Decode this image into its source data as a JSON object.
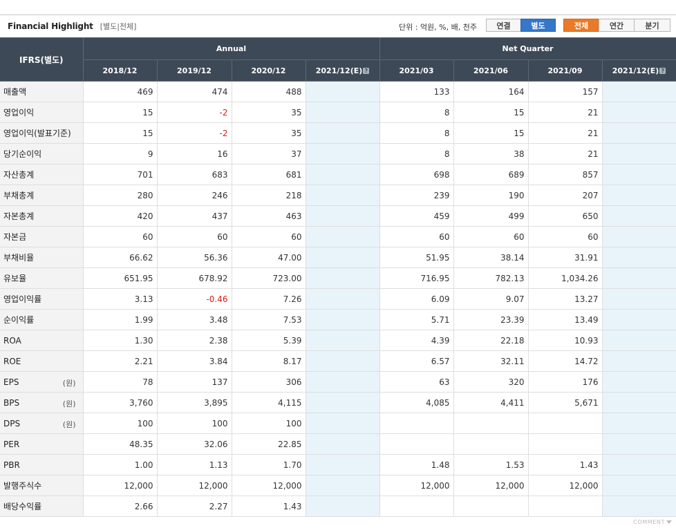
{
  "header": {
    "title": "Financial Highlight",
    "subtitle": "[별도|전체]",
    "unit": "단위 : 억원, %, 배, 천주",
    "consolidation_buttons": [
      {
        "label": "연결",
        "active": false
      },
      {
        "label": "별도",
        "active": true
      }
    ],
    "period_buttons": [
      {
        "label": "전체",
        "active": true
      },
      {
        "label": "연간",
        "active": false
      },
      {
        "label": "분기",
        "active": false
      }
    ],
    "accent_blue": "#3577c8",
    "accent_orange": "#ea7a28"
  },
  "table": {
    "corner_label": "IFRS(별도)",
    "group_annual": "Annual",
    "group_quarter": "Net Quarter",
    "annual_columns": [
      "2018/12",
      "2019/12",
      "2020/12",
      "2021/12(E)"
    ],
    "quarter_columns": [
      "2021/03",
      "2021/06",
      "2021/09",
      "2021/12(E)"
    ],
    "help_icon": "?",
    "rows": [
      {
        "label": "매출액",
        "unit": "",
        "values": [
          "469",
          "474",
          "488",
          "",
          "133",
          "164",
          "157",
          ""
        ]
      },
      {
        "label": "영업이익",
        "unit": "",
        "values": [
          "15",
          "-2",
          "35",
          "",
          "8",
          "15",
          "21",
          ""
        ]
      },
      {
        "label": "영업이익(발표기준)",
        "unit": "",
        "values": [
          "15",
          "-2",
          "35",
          "",
          "8",
          "15",
          "21",
          ""
        ]
      },
      {
        "label": "당기순이익",
        "unit": "",
        "values": [
          "9",
          "16",
          "37",
          "",
          "8",
          "38",
          "21",
          ""
        ]
      },
      {
        "label": "자산총계",
        "unit": "",
        "values": [
          "701",
          "683",
          "681",
          "",
          "698",
          "689",
          "857",
          ""
        ]
      },
      {
        "label": "부채총계",
        "unit": "",
        "values": [
          "280",
          "246",
          "218",
          "",
          "239",
          "190",
          "207",
          ""
        ]
      },
      {
        "label": "자본총계",
        "unit": "",
        "values": [
          "420",
          "437",
          "463",
          "",
          "459",
          "499",
          "650",
          ""
        ]
      },
      {
        "label": "자본금",
        "unit": "",
        "values": [
          "60",
          "60",
          "60",
          "",
          "60",
          "60",
          "60",
          ""
        ]
      },
      {
        "label": "부채비율",
        "unit": "",
        "values": [
          "66.62",
          "56.36",
          "47.00",
          "",
          "51.95",
          "38.14",
          "31.91",
          ""
        ]
      },
      {
        "label": "유보율",
        "unit": "",
        "values": [
          "651.95",
          "678.92",
          "723.00",
          "",
          "716.95",
          "782.13",
          "1,034.26",
          ""
        ]
      },
      {
        "label": "영업이익률",
        "unit": "",
        "values": [
          "3.13",
          "-0.46",
          "7.26",
          "",
          "6.09",
          "9.07",
          "13.27",
          ""
        ]
      },
      {
        "label": "순이익률",
        "unit": "",
        "values": [
          "1.99",
          "3.48",
          "7.53",
          "",
          "5.71",
          "23.39",
          "13.49",
          ""
        ]
      },
      {
        "label": "ROA",
        "unit": "",
        "values": [
          "1.30",
          "2.38",
          "5.39",
          "",
          "4.39",
          "22.18",
          "10.93",
          ""
        ]
      },
      {
        "label": "ROE",
        "unit": "",
        "values": [
          "2.21",
          "3.84",
          "8.17",
          "",
          "6.57",
          "32.11",
          "14.72",
          ""
        ]
      },
      {
        "label": "EPS",
        "unit": "(원)",
        "values": [
          "78",
          "137",
          "306",
          "",
          "63",
          "320",
          "176",
          ""
        ]
      },
      {
        "label": "BPS",
        "unit": "(원)",
        "values": [
          "3,760",
          "3,895",
          "4,115",
          "",
          "4,085",
          "4,411",
          "5,671",
          ""
        ]
      },
      {
        "label": "DPS",
        "unit": "(원)",
        "values": [
          "100",
          "100",
          "100",
          "",
          "",
          "",
          "",
          ""
        ]
      },
      {
        "label": "PER",
        "unit": "",
        "values": [
          "48.35",
          "32.06",
          "22.85",
          "",
          "",
          "",
          "",
          ""
        ]
      },
      {
        "label": "PBR",
        "unit": "",
        "values": [
          "1.00",
          "1.13",
          "1.70",
          "",
          "1.48",
          "1.53",
          "1.43",
          ""
        ]
      },
      {
        "label": "발행주식수",
        "unit": "",
        "values": [
          "12,000",
          "12,000",
          "12,000",
          "",
          "12,000",
          "12,000",
          "12,000",
          ""
        ]
      },
      {
        "label": "배당수익률",
        "unit": "",
        "values": [
          "2.66",
          "2.27",
          "1.43",
          "",
          "",
          "",
          "",
          ""
        ]
      }
    ]
  },
  "footer": {
    "comment_label": "COMMENT"
  }
}
